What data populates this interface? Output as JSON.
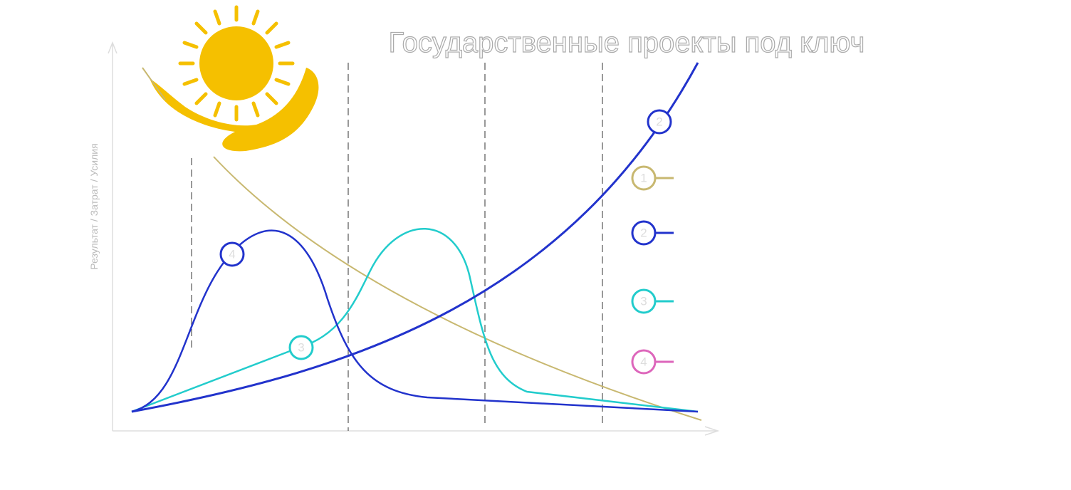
{
  "title": "Государственные проекты под ключ",
  "y_axis_label": "Результат / Затрат / Усилия",
  "curve_markers": [
    {
      "label": "2"
    },
    {
      "label": "4"
    },
    {
      "label": "3"
    }
  ],
  "legend": [
    {
      "label": "1"
    },
    {
      "label": "2"
    },
    {
      "label": "3"
    },
    {
      "label": "4"
    }
  ]
}
